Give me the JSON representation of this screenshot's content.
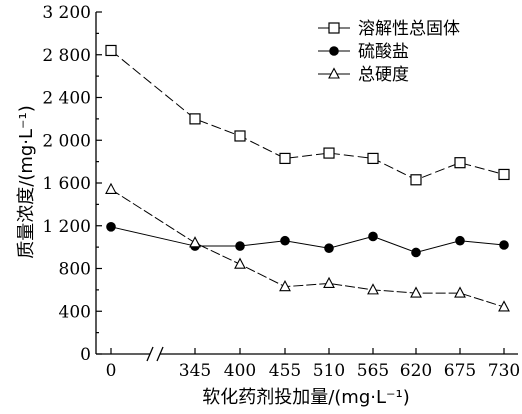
{
  "chart_data": {
    "type": "line",
    "title": "",
    "xlabel": "软化药剂投加量/(mg·L⁻¹)",
    "ylabel": "质量浓度/(mg·L⁻¹)",
    "categories": [
      "0",
      "345",
      "400",
      "455",
      "510",
      "565",
      "620",
      "675",
      "730"
    ],
    "x_axis_break": true,
    "ylim": [
      0,
      3200
    ],
    "yticks": [
      0,
      400,
      800,
      1200,
      1600,
      2000,
      2400,
      2800,
      3200
    ],
    "ytick_labels": [
      "0",
      "400",
      "800",
      "1 200",
      "1 600",
      "2 000",
      "2 400",
      "2 800",
      "3 200"
    ],
    "grid": false,
    "legend_position": "top-right",
    "series": [
      {
        "name": "溶解性总固体",
        "marker": "square-open",
        "color": "#000000",
        "values": [
          2840,
          2200,
          2040,
          1830,
          1880,
          1830,
          1630,
          1790,
          1680
        ]
      },
      {
        "name": "硫酸盐",
        "marker": "circle-filled",
        "color": "#000000",
        "values": [
          1190,
          1010,
          1010,
          1060,
          990,
          1100,
          950,
          1060,
          1020
        ]
      },
      {
        "name": "总硬度",
        "marker": "triangle-open",
        "color": "#000000",
        "values": [
          1540,
          1040,
          840,
          630,
          660,
          600,
          570,
          570,
          440
        ]
      }
    ]
  }
}
